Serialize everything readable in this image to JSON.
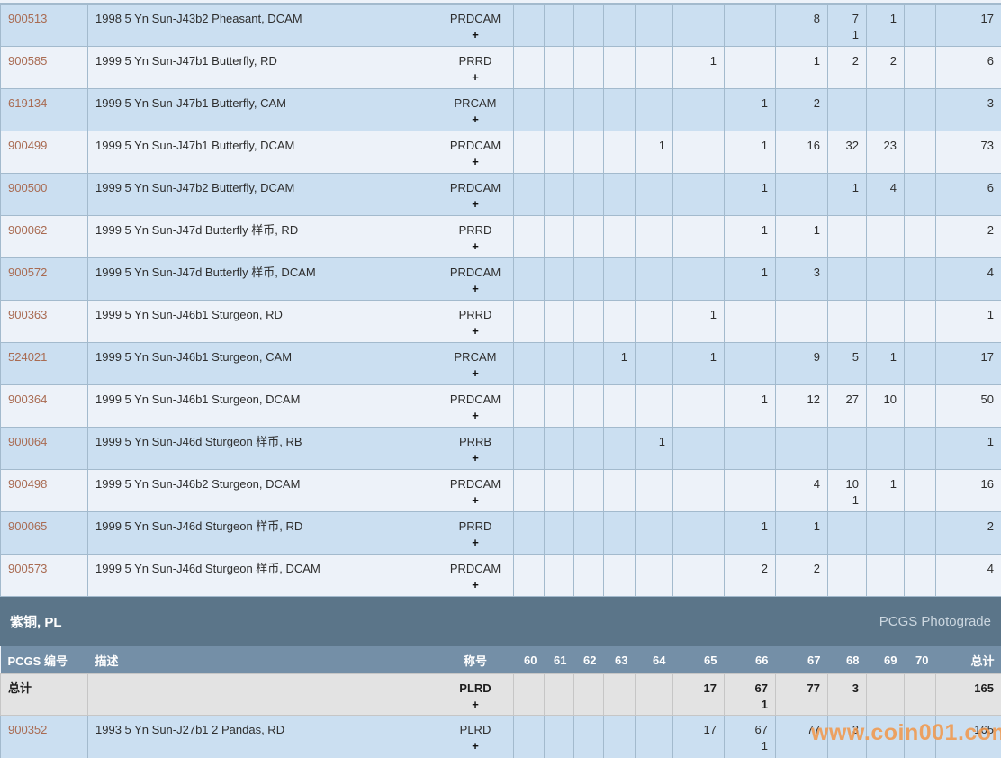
{
  "watermark": "www.coin001.com",
  "colors": {
    "row_dark": "#cbdff1",
    "row_light": "#edf2f9",
    "grid_border": "#a3bacd",
    "band_bg": "#5b7589",
    "header_bg": "#748fa7",
    "total_row_bg": "#e3e3e3",
    "pcgs_link": "#a96b52",
    "watermark_orange": "#f29748"
  },
  "pr_section_rows": [
    {
      "pcgs": "900513",
      "desc": "1998 5 Yn Sun-J43b2 Pheasant, DCAM",
      "desig": "PRDCAM",
      "plus": "+",
      "grades": [
        "",
        "",
        "",
        "",
        "",
        "",
        "",
        "8",
        "7",
        "1",
        ""
      ],
      "subs": [
        "",
        "",
        "",
        "",
        "",
        "",
        "",
        "",
        "1",
        "",
        ""
      ],
      "total": "17"
    },
    {
      "pcgs": "900585",
      "desc": "1999 5 Yn Sun-J47b1 Butterfly, RD",
      "desig": "PRRD",
      "plus": "+",
      "grades": [
        "",
        "",
        "",
        "",
        "",
        "1",
        "",
        "1",
        "2",
        "2",
        ""
      ],
      "subs": [
        "",
        "",
        "",
        "",
        "",
        "",
        "",
        "",
        "",
        "",
        ""
      ],
      "total": "6"
    },
    {
      "pcgs": "619134",
      "desc": "1999 5 Yn Sun-J47b1 Butterfly, CAM",
      "desig": "PRCAM",
      "plus": "+",
      "grades": [
        "",
        "",
        "",
        "",
        "",
        "",
        "1",
        "2",
        "",
        "",
        ""
      ],
      "subs": [
        "",
        "",
        "",
        "",
        "",
        "",
        "",
        "",
        "",
        "",
        ""
      ],
      "total": "3"
    },
    {
      "pcgs": "900499",
      "desc": "1999 5 Yn Sun-J47b1 Butterfly, DCAM",
      "desig": "PRDCAM",
      "plus": "+",
      "grades": [
        "",
        "",
        "",
        "",
        "1",
        "",
        "1",
        "16",
        "32",
        "23",
        ""
      ],
      "subs": [
        "",
        "",
        "",
        "",
        "",
        "",
        "",
        "",
        "",
        "",
        ""
      ],
      "total": "73"
    },
    {
      "pcgs": "900500",
      "desc": "1999 5 Yn Sun-J47b2 Butterfly, DCAM",
      "desig": "PRDCAM",
      "plus": "+",
      "grades": [
        "",
        "",
        "",
        "",
        "",
        "",
        "1",
        "",
        "1",
        "4",
        ""
      ],
      "subs": [
        "",
        "",
        "",
        "",
        "",
        "",
        "",
        "",
        "",
        "",
        ""
      ],
      "total": "6"
    },
    {
      "pcgs": "900062",
      "desc": "1999 5 Yn Sun-J47d Butterfly 样币, RD",
      "desig": "PRRD",
      "plus": "+",
      "grades": [
        "",
        "",
        "",
        "",
        "",
        "",
        "1",
        "1",
        "",
        "",
        ""
      ],
      "subs": [
        "",
        "",
        "",
        "",
        "",
        "",
        "",
        "",
        "",
        "",
        ""
      ],
      "total": "2"
    },
    {
      "pcgs": "900572",
      "desc": "1999 5 Yn Sun-J47d Butterfly 样币, DCAM",
      "desig": "PRDCAM",
      "plus": "+",
      "grades": [
        "",
        "",
        "",
        "",
        "",
        "",
        "1",
        "3",
        "",
        "",
        ""
      ],
      "subs": [
        "",
        "",
        "",
        "",
        "",
        "",
        "",
        "",
        "",
        "",
        ""
      ],
      "total": "4"
    },
    {
      "pcgs": "900363",
      "desc": "1999 5 Yn Sun-J46b1 Sturgeon, RD",
      "desig": "PRRD",
      "plus": "+",
      "grades": [
        "",
        "",
        "",
        "",
        "",
        "1",
        "",
        "",
        "",
        "",
        ""
      ],
      "subs": [
        "",
        "",
        "",
        "",
        "",
        "",
        "",
        "",
        "",
        "",
        ""
      ],
      "total": "1"
    },
    {
      "pcgs": "524021",
      "desc": "1999 5 Yn Sun-J46b1 Sturgeon, CAM",
      "desig": "PRCAM",
      "plus": "+",
      "grades": [
        "",
        "",
        "",
        "1",
        "",
        "1",
        "",
        "9",
        "5",
        "1",
        ""
      ],
      "subs": [
        "",
        "",
        "",
        "",
        "",
        "",
        "",
        "",
        "",
        "",
        ""
      ],
      "total": "17"
    },
    {
      "pcgs": "900364",
      "desc": "1999 5 Yn Sun-J46b1 Sturgeon, DCAM",
      "desig": "PRDCAM",
      "plus": "+",
      "grades": [
        "",
        "",
        "",
        "",
        "",
        "",
        "1",
        "12",
        "27",
        "10",
        ""
      ],
      "subs": [
        "",
        "",
        "",
        "",
        "",
        "",
        "",
        "",
        "",
        "",
        ""
      ],
      "total": "50"
    },
    {
      "pcgs": "900064",
      "desc": "1999 5 Yn Sun-J46d Sturgeon 样币, RB",
      "desig": "PRRB",
      "plus": "+",
      "grades": [
        "",
        "",
        "",
        "",
        "1",
        "",
        "",
        "",
        "",
        "",
        ""
      ],
      "subs": [
        "",
        "",
        "",
        "",
        "",
        "",
        "",
        "",
        "",
        "",
        ""
      ],
      "total": "1"
    },
    {
      "pcgs": "900498",
      "desc": "1999 5 Yn Sun-J46b2 Sturgeon, DCAM",
      "desig": "PRDCAM",
      "plus": "+",
      "grades": [
        "",
        "",
        "",
        "",
        "",
        "",
        "",
        "4",
        "10",
        "1",
        ""
      ],
      "subs": [
        "",
        "",
        "",
        "",
        "",
        "",
        "",
        "",
        "1",
        "",
        ""
      ],
      "total": "16"
    },
    {
      "pcgs": "900065",
      "desc": "1999 5 Yn Sun-J46d Sturgeon 样币, RD",
      "desig": "PRRD",
      "plus": "+",
      "grades": [
        "",
        "",
        "",
        "",
        "",
        "",
        "1",
        "1",
        "",
        "",
        ""
      ],
      "subs": [
        "",
        "",
        "",
        "",
        "",
        "",
        "",
        "",
        "",
        "",
        ""
      ],
      "total": "2"
    },
    {
      "pcgs": "900573",
      "desc": "1999 5 Yn Sun-J46d Sturgeon 样币, DCAM",
      "desig": "PRDCAM",
      "plus": "+",
      "grades": [
        "",
        "",
        "",
        "",
        "",
        "",
        "2",
        "2",
        "",
        "",
        ""
      ],
      "subs": [
        "",
        "",
        "",
        "",
        "",
        "",
        "",
        "",
        "",
        "",
        ""
      ],
      "total": "4"
    }
  ],
  "pl_section": {
    "title": "紫铜, PL",
    "photograde_label": "PCGS Photograde",
    "columns": {
      "pcgs": "PCGS 编号",
      "desc": "描述",
      "desig": "称号",
      "grades": [
        "60",
        "61",
        "62",
        "63",
        "64",
        "65",
        "66",
        "67",
        "68",
        "69",
        "70"
      ],
      "total": "总计"
    },
    "total_row": {
      "label": "总计",
      "desc": "",
      "desig": "PLRD",
      "plus": "+",
      "grades": [
        "",
        "",
        "",
        "",
        "",
        "17",
        "67",
        "77",
        "3",
        "",
        ""
      ],
      "subs": [
        "",
        "",
        "",
        "",
        "",
        "",
        "1",
        "",
        "",
        "",
        ""
      ],
      "total": "165"
    },
    "rows": [
      {
        "pcgs": "900352",
        "desc": "1993 5 Yn Sun-J27b1 2 Pandas, RD",
        "desig": "PLRD",
        "plus": "+",
        "grades": [
          "",
          "",
          "",
          "",
          "",
          "17",
          "67",
          "77",
          "3",
          "",
          ""
        ],
        "subs": [
          "",
          "",
          "",
          "",
          "",
          "",
          "1",
          "",
          "",
          "",
          ""
        ],
        "total": "165"
      }
    ]
  }
}
